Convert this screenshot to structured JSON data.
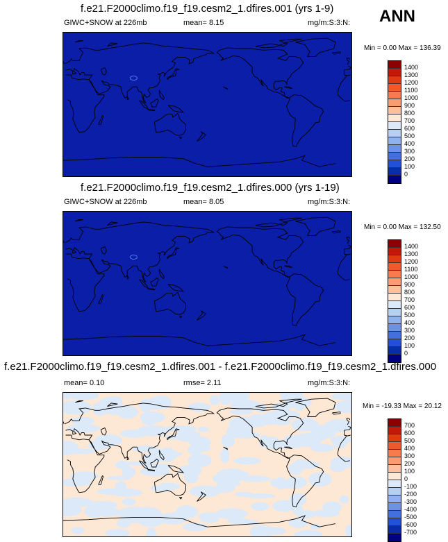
{
  "season": "ANN",
  "panels": [
    {
      "title": "f.e21.F2000climo.f19_f19.cesm2_1.dfires.001 (yrs 1-9)",
      "left_label": "GIWC+SNOW at 226mb",
      "mid_label": "mean=  8.15",
      "units": "mg/m:S:3:N:",
      "minmax": "Min =  0.00 Max = 136.39",
      "bg_color": "#0b1ea8",
      "levels": [
        "1400",
        "1300",
        "1200",
        "1100",
        "1000",
        "900",
        "800",
        "700",
        "600",
        "500",
        "400",
        "300",
        "200",
        "100",
        "0"
      ],
      "colors": [
        "#8b0000",
        "#c11a0a",
        "#e03a12",
        "#f2592a",
        "#f77b4c",
        "#fa9c72",
        "#fdbf9e",
        "#fde8d6",
        "#dbe9f8",
        "#b6d0f2",
        "#8fb2ec",
        "#6b92e4",
        "#4370dd",
        "#2250d6",
        "#0a2ca8",
        "#000080"
      ]
    },
    {
      "title": "f.e21.F2000climo.f19_f19.cesm2_1.dfires.000 (yrs 1-19)",
      "left_label": "GIWC+SNOW at 226mb",
      "mid_label": "mean=  8.05",
      "units": "mg/m:S:3:N:",
      "minmax": "Min =  0.00 Max = 132.50",
      "bg_color": "#0b1ea8",
      "levels": [
        "1400",
        "1300",
        "1200",
        "1100",
        "1000",
        "900",
        "800",
        "700",
        "600",
        "500",
        "400",
        "300",
        "200",
        "100",
        "0"
      ],
      "colors": [
        "#8b0000",
        "#c11a0a",
        "#e03a12",
        "#f2592a",
        "#f77b4c",
        "#fa9c72",
        "#fdbf9e",
        "#fde8d6",
        "#dbe9f8",
        "#b6d0f2",
        "#8fb2ec",
        "#6b92e4",
        "#4370dd",
        "#2250d6",
        "#0a2ca8",
        "#000080"
      ]
    },
    {
      "title": "f.e21.F2000climo.f19_f19.cesm2_1.dfires.001 - f.e21.F2000climo.f19_f19.cesm2_1.dfires.000",
      "left_label": "mean=  0.10",
      "mid_label": "rmse=  2.11",
      "units": "mg/m:S:3:N:",
      "minmax": "Min = -19.33 Max = 20.12",
      "bg_color": "#fde8d6",
      "levels": [
        "700",
        "600",
        "500",
        "400",
        "300",
        "200",
        "100",
        "0",
        "-100",
        "-200",
        "-300",
        "-400",
        "-500",
        "-600",
        "-700"
      ],
      "colors": [
        "#8b0000",
        "#c11a0a",
        "#e03a12",
        "#f2592a",
        "#f77b4c",
        "#fa9c72",
        "#fdbf9e",
        "#fde8d6",
        "#dbe9f8",
        "#b6d0f2",
        "#8fb2ec",
        "#6b92e4",
        "#4370dd",
        "#2250d6",
        "#0a2ca8",
        "#000080"
      ]
    }
  ]
}
